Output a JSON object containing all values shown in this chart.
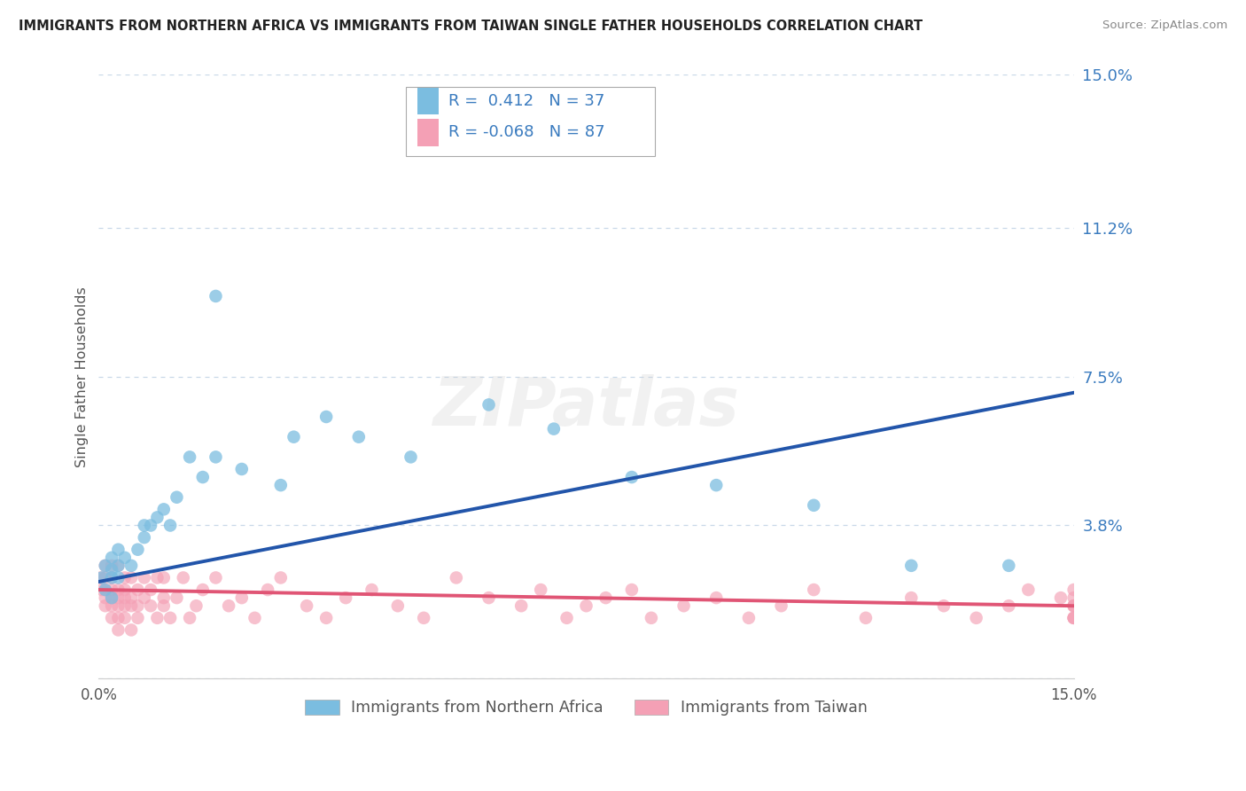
{
  "title": "IMMIGRANTS FROM NORTHERN AFRICA VS IMMIGRANTS FROM TAIWAN SINGLE FATHER HOUSEHOLDS CORRELATION CHART",
  "source": "Source: ZipAtlas.com",
  "ylabel": "Single Father Households",
  "x_min": 0.0,
  "x_max": 0.15,
  "y_min": 0.0,
  "y_max": 0.15,
  "y_ticks": [
    0.0,
    0.038,
    0.075,
    0.112,
    0.15
  ],
  "y_tick_labels": [
    "",
    "3.8%",
    "7.5%",
    "11.2%",
    "15.0%"
  ],
  "blue_R": 0.412,
  "blue_N": 37,
  "pink_R": -0.068,
  "pink_N": 87,
  "blue_color": "#7bbde0",
  "pink_color": "#f4a0b5",
  "blue_line_color": "#2255aa",
  "pink_line_color": "#e05575",
  "legend_label_blue": "Immigrants from Northern Africa",
  "legend_label_pink": "Immigrants from Taiwan",
  "background_color": "#ffffff",
  "grid_color": "#c8d8e8",
  "watermark": "ZIPatlas",
  "blue_scatter_x": [
    0.0005,
    0.001,
    0.001,
    0.002,
    0.002,
    0.002,
    0.002,
    0.003,
    0.003,
    0.003,
    0.004,
    0.005,
    0.006,
    0.007,
    0.007,
    0.008,
    0.009,
    0.01,
    0.011,
    0.012,
    0.014,
    0.016,
    0.018,
    0.018,
    0.022,
    0.028,
    0.03,
    0.035,
    0.04,
    0.048,
    0.06,
    0.07,
    0.082,
    0.095,
    0.11,
    0.125,
    0.14
  ],
  "blue_scatter_y": [
    0.025,
    0.022,
    0.028,
    0.02,
    0.025,
    0.03,
    0.027,
    0.025,
    0.028,
    0.032,
    0.03,
    0.028,
    0.032,
    0.035,
    0.038,
    0.038,
    0.04,
    0.042,
    0.038,
    0.045,
    0.055,
    0.05,
    0.055,
    0.095,
    0.052,
    0.048,
    0.06,
    0.065,
    0.06,
    0.055,
    0.068,
    0.062,
    0.05,
    0.048,
    0.043,
    0.028,
    0.028
  ],
  "pink_scatter_x": [
    0.0003,
    0.0005,
    0.001,
    0.001,
    0.001,
    0.001,
    0.001,
    0.002,
    0.002,
    0.002,
    0.002,
    0.002,
    0.002,
    0.003,
    0.003,
    0.003,
    0.003,
    0.003,
    0.003,
    0.004,
    0.004,
    0.004,
    0.004,
    0.004,
    0.005,
    0.005,
    0.005,
    0.005,
    0.006,
    0.006,
    0.006,
    0.007,
    0.007,
    0.008,
    0.008,
    0.009,
    0.009,
    0.01,
    0.01,
    0.01,
    0.011,
    0.012,
    0.013,
    0.014,
    0.015,
    0.016,
    0.018,
    0.02,
    0.022,
    0.024,
    0.026,
    0.028,
    0.032,
    0.035,
    0.038,
    0.042,
    0.046,
    0.05,
    0.055,
    0.06,
    0.065,
    0.068,
    0.072,
    0.075,
    0.078,
    0.082,
    0.085,
    0.09,
    0.095,
    0.1,
    0.105,
    0.11,
    0.118,
    0.125,
    0.13,
    0.135,
    0.14,
    0.143,
    0.148,
    0.15,
    0.15,
    0.15,
    0.15,
    0.15,
    0.15,
    0.15,
    0.15
  ],
  "pink_scatter_y": [
    0.025,
    0.022,
    0.025,
    0.022,
    0.028,
    0.02,
    0.018,
    0.025,
    0.022,
    0.02,
    0.018,
    0.015,
    0.028,
    0.022,
    0.02,
    0.018,
    0.015,
    0.012,
    0.028,
    0.022,
    0.02,
    0.018,
    0.025,
    0.015,
    0.02,
    0.025,
    0.018,
    0.012,
    0.022,
    0.018,
    0.015,
    0.025,
    0.02,
    0.018,
    0.022,
    0.025,
    0.015,
    0.02,
    0.018,
    0.025,
    0.015,
    0.02,
    0.025,
    0.015,
    0.018,
    0.022,
    0.025,
    0.018,
    0.02,
    0.015,
    0.022,
    0.025,
    0.018,
    0.015,
    0.02,
    0.022,
    0.018,
    0.015,
    0.025,
    0.02,
    0.018,
    0.022,
    0.015,
    0.018,
    0.02,
    0.022,
    0.015,
    0.018,
    0.02,
    0.015,
    0.018,
    0.022,
    0.015,
    0.02,
    0.018,
    0.015,
    0.018,
    0.022,
    0.02,
    0.018,
    0.015,
    0.022,
    0.018,
    0.015,
    0.02,
    0.018,
    0.015
  ],
  "blue_line_x0": 0.0,
  "blue_line_y0": 0.024,
  "blue_line_x1": 0.15,
  "blue_line_y1": 0.071,
  "pink_line_x0": 0.0,
  "pink_line_y0": 0.022,
  "pink_line_x1": 0.15,
  "pink_line_y1": 0.018
}
